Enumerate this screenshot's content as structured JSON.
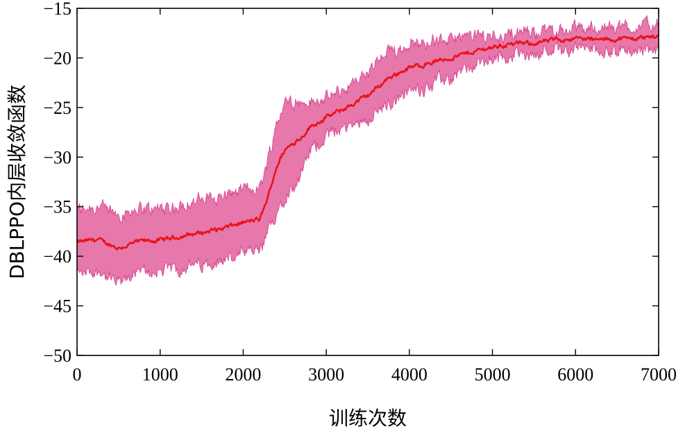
{
  "chart_data": {
    "type": "line",
    "title": "",
    "xlabel": "训练次数",
    "ylabel": "DBLPPO内层收敛函数",
    "xlim": [
      0,
      7000
    ],
    "ylim": [
      -50,
      -15
    ],
    "x_ticks": [
      0,
      1000,
      2000,
      3000,
      4000,
      5000,
      6000,
      7000
    ],
    "x_tick_labels": [
      "0",
      "1000",
      "2000",
      "3000",
      "4000",
      "5000",
      "6000",
      "7000"
    ],
    "y_ticks": [
      -50,
      -45,
      -40,
      -35,
      -30,
      -25,
      -20,
      -15
    ],
    "y_tick_labels": [
      "−50",
      "−45",
      "−40",
      "−35",
      "−30",
      "−25",
      "−20",
      "−15"
    ],
    "grid": false,
    "legend": "none",
    "colors": {
      "mean_line": "#e8141c",
      "band": "#e05a9a",
      "band_edge": "#d23c8c"
    },
    "series": [
      {
        "x": [
          0,
          250,
          500,
          750,
          1000,
          1250,
          1500,
          1750,
          2000,
          2200,
          2300,
          2400,
          2500,
          2600,
          2700,
          2800,
          3000,
          3250,
          3500,
          3750,
          4000,
          4250,
          4500,
          4750,
          5000,
          5250,
          5500,
          5750,
          6000,
          6250,
          6500,
          6750,
          7000
        ],
        "values": [
          -38.6,
          -38.3,
          -39.2,
          -38.5,
          -38.4,
          -38.0,
          -37.6,
          -37.2,
          -36.6,
          -36.3,
          -34.0,
          -31.0,
          -29.3,
          -28.6,
          -28.0,
          -27.0,
          -26.0,
          -25.0,
          -23.8,
          -22.0,
          -21.0,
          -20.5,
          -20.0,
          -19.4,
          -18.9,
          -18.6,
          -18.5,
          -18.2,
          -18.0,
          -18.2,
          -18.1,
          -18.0,
          -17.8
        ],
        "band_half_width": [
          3.2,
          3.3,
          3.5,
          3.2,
          3.2,
          3.1,
          3.3,
          3.2,
          3.3,
          3.2,
          3.8,
          4.5,
          4.6,
          4.4,
          3.6,
          2.5,
          1.8,
          2.0,
          2.3,
          2.6,
          2.4,
          2.2,
          1.9,
          1.5,
          1.2,
          1.1,
          1.1,
          1.0,
          1.0,
          1.1,
          1.2,
          1.2,
          1.3
        ]
      }
    ]
  }
}
